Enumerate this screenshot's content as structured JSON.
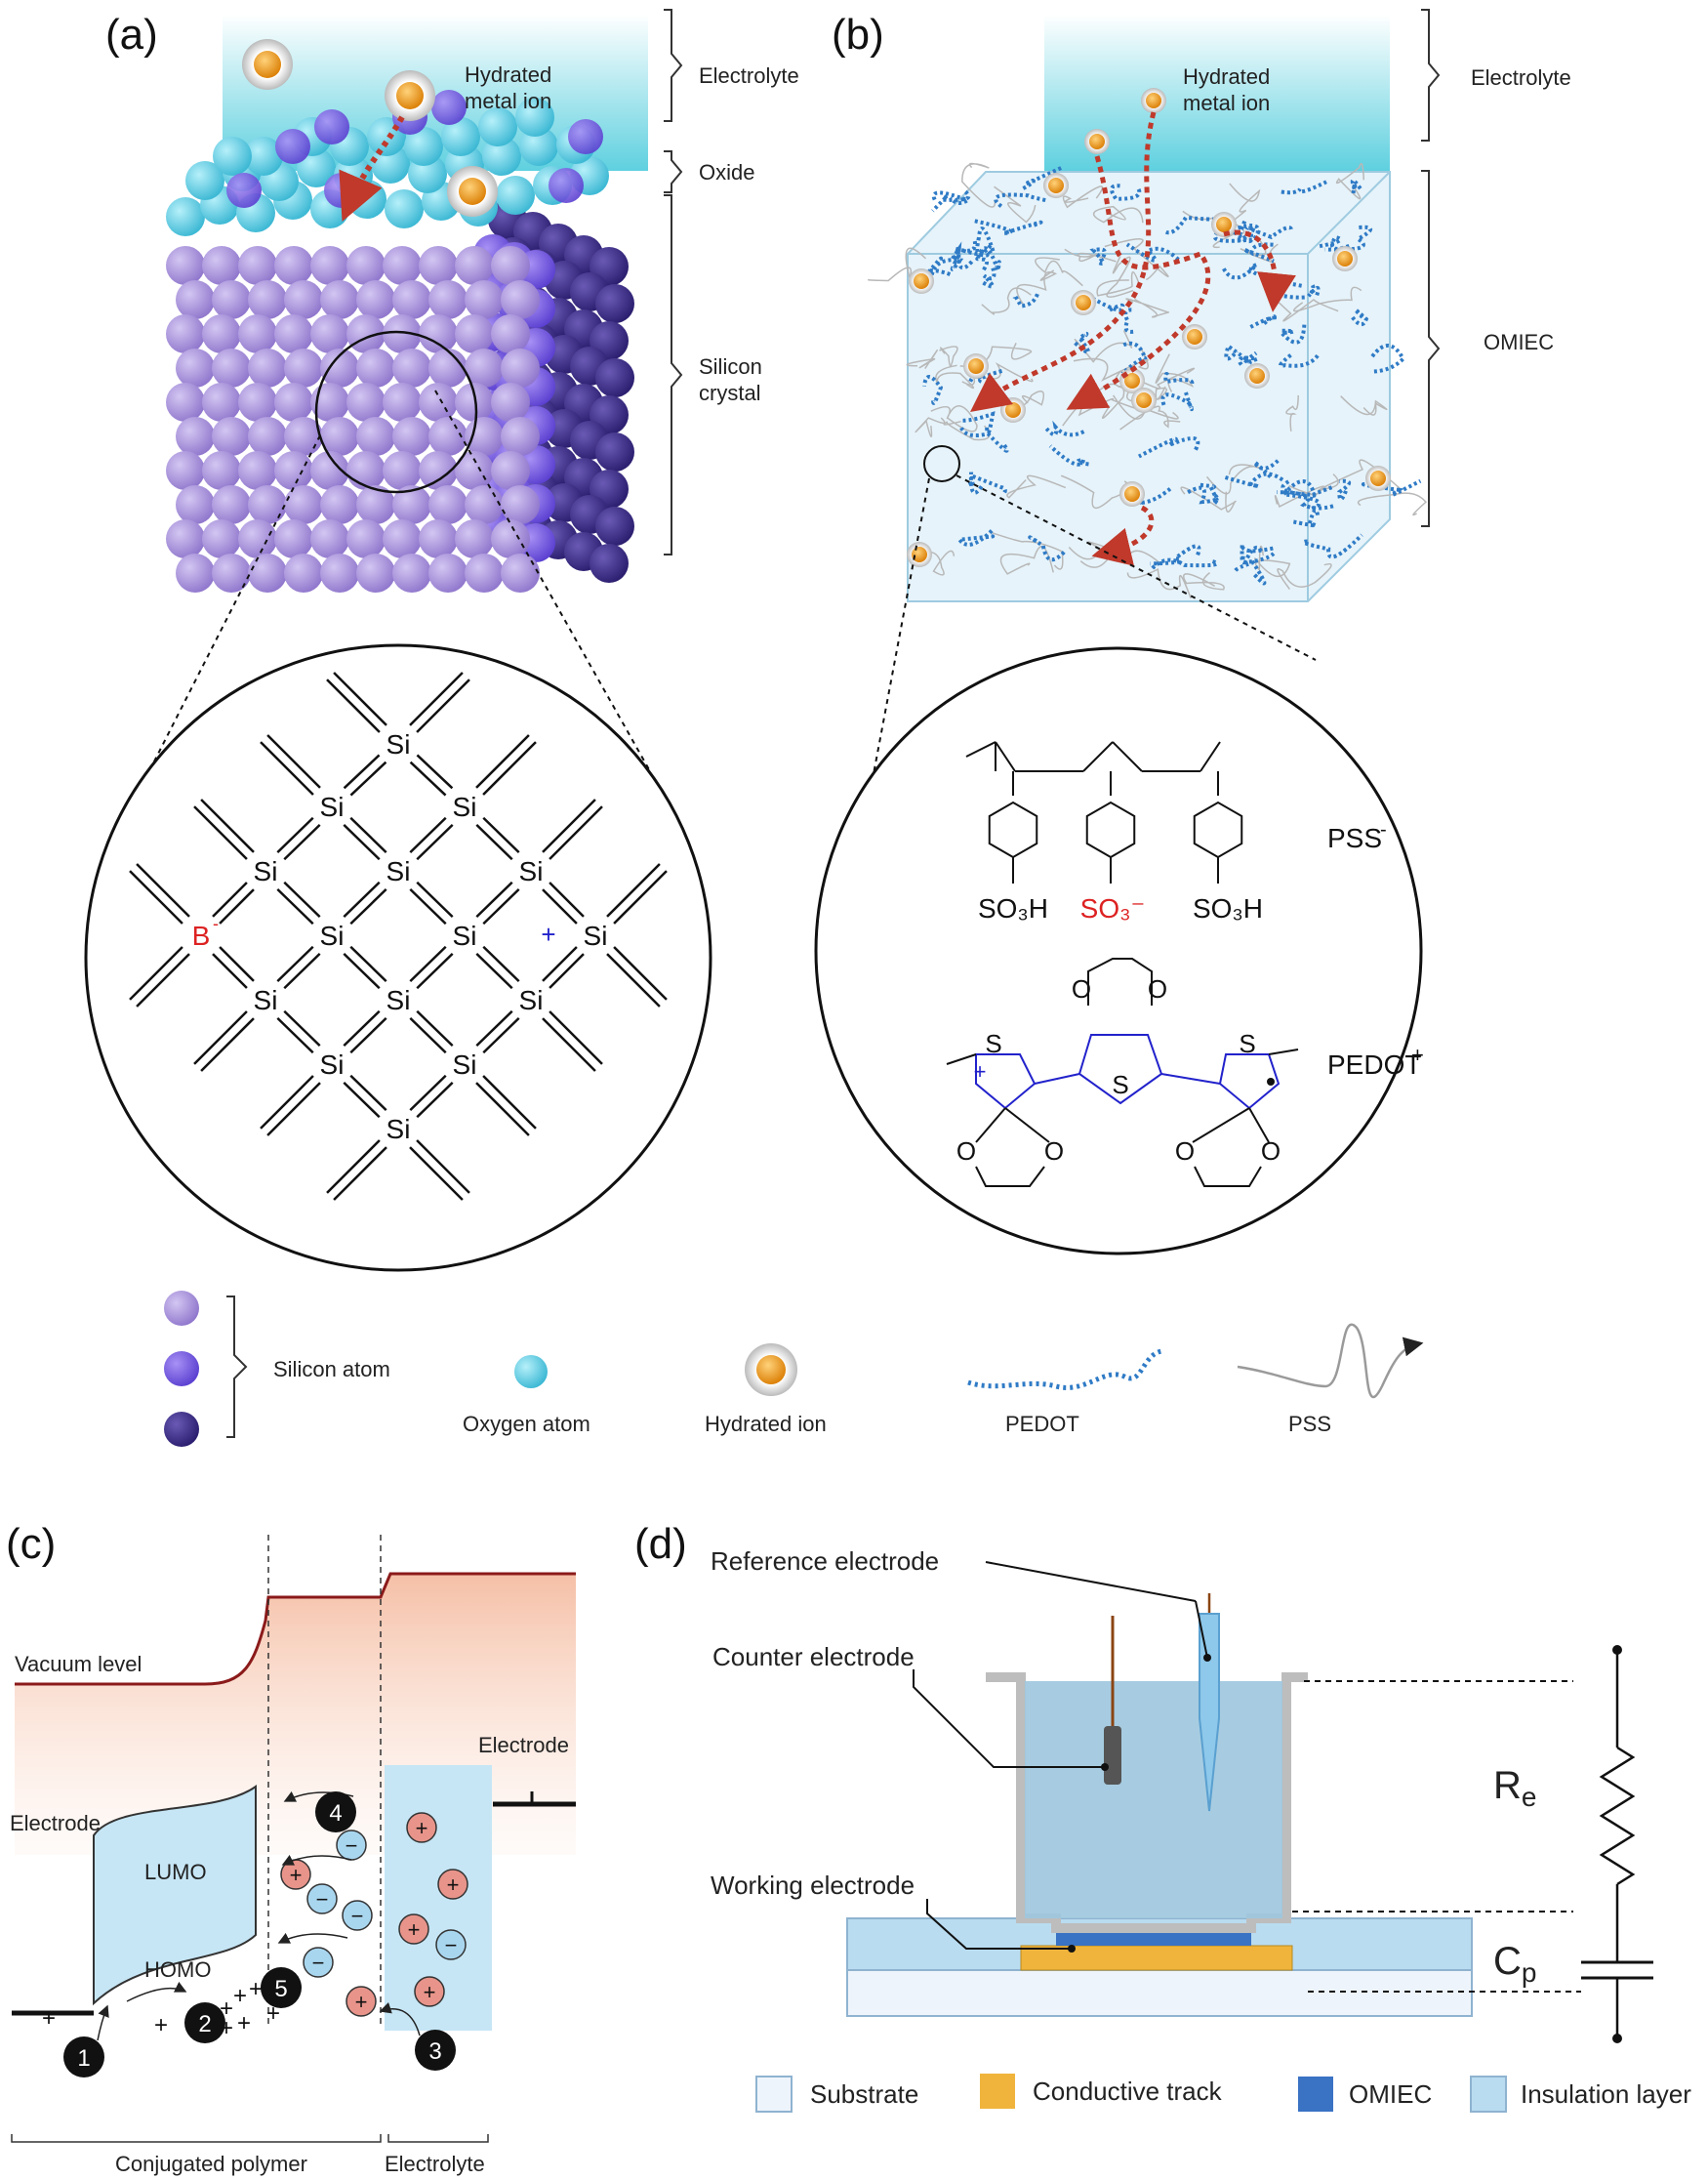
{
  "panels": {
    "a": "(a)",
    "b": "(b)",
    "c": "(c)",
    "d": "(d)"
  },
  "panel_a": {
    "hydrated_ion_label_line1": "Hydrated",
    "hydrated_ion_label_line2": "metal ion",
    "electrolyte": "Electrolyte",
    "oxide": "Oxide",
    "silicon_crystal_line1": "Silicon",
    "silicon_crystal_line2": "crystal",
    "lattice": {
      "si": "Si",
      "b": "B",
      "b_charge": "-",
      "hole": "+"
    }
  },
  "panel_b": {
    "hydrated_ion_label_line1": "Hydrated",
    "hydrated_ion_label_line2": "metal ion",
    "electrolyte": "Electrolyte",
    "omiec": "OMIEC",
    "pss_label": "PSS",
    "pss_charge": "-",
    "pedot_label": "PEDOT",
    "pedot_charge": "+",
    "so3h": "SO₃H",
    "so3_minus": "SO₃⁻",
    "s": "S",
    "o": "O"
  },
  "legend": {
    "silicon_atom": "Silicon atom",
    "oxygen_atom": "Oxygen atom",
    "hydrated_ion": "Hydrated ion",
    "pedot": "PEDOT",
    "pss": "PSS"
  },
  "panel_c": {
    "vacuum_level": "Vacuum level",
    "electrode_left": "Electrode",
    "electrode_right": "Electrode",
    "lumo": "LUMO",
    "homo": "HOMO",
    "conjugated_polymer": "Conjugated polymer",
    "electrolyte": "Electrolyte",
    "steps": [
      "1",
      "2",
      "3",
      "4",
      "5"
    ],
    "plus": "+",
    "minus": "−"
  },
  "panel_d": {
    "reference_electrode": "Reference electrode",
    "counter_electrode": "Counter electrode",
    "working_electrode": "Working electrode",
    "re": "R",
    "re_sub": "e",
    "cp": "C",
    "cp_sub": "p",
    "legend": {
      "substrate": "Substrate",
      "conductive_track": "Conductive track",
      "omiec": "OMIEC",
      "insulation_layer": "Insulation layer"
    }
  },
  "colors": {
    "si_light": "#a58fdb",
    "si_mid": "#7a5ce0",
    "si_dark": "#3d2d8a",
    "oxygen": "#5ccde3",
    "ion": "#e8920f",
    "pedot": "#2f7bc6",
    "pss": "#9a9a9a",
    "electrolyte_top": "#ffffff",
    "electrolyte_bottom": "#6fd6e2",
    "arrow_red": "#c0392b",
    "vacuum_line": "#8b1a1a",
    "cell_blue": "#9dc7de",
    "omiec_dark": "#3a72c4",
    "track": "#f0b43c",
    "insulation": "#b9dcf0",
    "substrate": "#eef4fb"
  }
}
